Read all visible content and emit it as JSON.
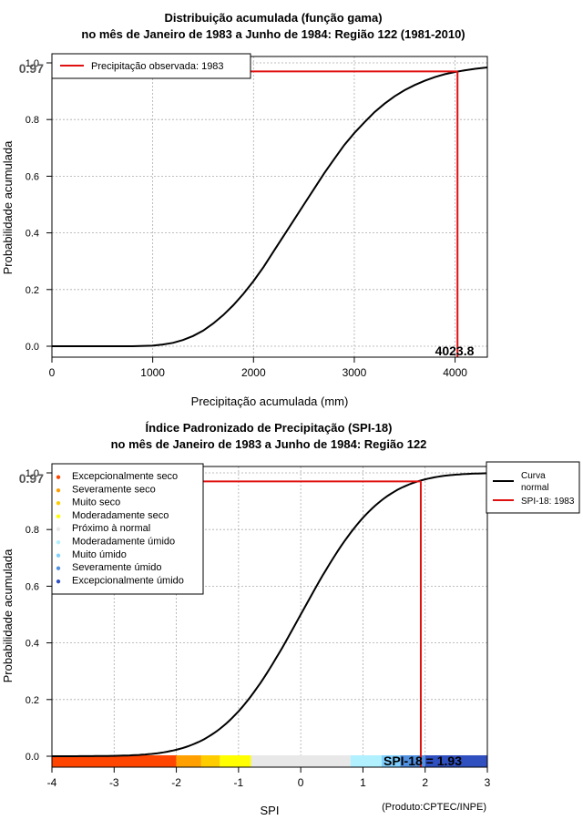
{
  "chart_data": [
    {
      "type": "line",
      "title": "Distribuição acumulada (função gama)",
      "subtitle": "no mês de Janeiro de 1983 a Junho de 1984: Região 122 (1981-2010)",
      "xlabel": "Precipitação acumulada (mm)",
      "ylabel": "Probabilidade acumulada",
      "xlim": [
        0,
        4320
      ],
      "ylim": [
        0,
        1.0
      ],
      "x_ticks": [
        "0",
        "1000",
        "2000",
        "3000",
        "4000"
      ],
      "x_tick_values": [
        0,
        1000,
        2000,
        3000,
        4000
      ],
      "y_ticks": [
        "0.0",
        "0.2",
        "0.4",
        "0.6",
        "0.8",
        "1.0"
      ],
      "y_tick_values": [
        0,
        0.2,
        0.4,
        0.6,
        0.8,
        1.0
      ],
      "grid": true,
      "curve_x": [
        0,
        400,
        800,
        1000,
        1100,
        1200,
        1300,
        1400,
        1500,
        1600,
        1700,
        1800,
        1900,
        2000,
        2100,
        2200,
        2300,
        2400,
        2500,
        2600,
        2700,
        2800,
        2900,
        3000,
        3100,
        3200,
        3300,
        3400,
        3500,
        3600,
        3700,
        3800,
        3900,
        4000,
        4100,
        4200,
        4320
      ],
      "curve_y": [
        0,
        0,
        0,
        0.002,
        0.006,
        0.012,
        0.022,
        0.036,
        0.055,
        0.08,
        0.11,
        0.145,
        0.185,
        0.23,
        0.28,
        0.335,
        0.39,
        0.445,
        0.5,
        0.555,
        0.61,
        0.66,
        0.71,
        0.752,
        0.79,
        0.826,
        0.856,
        0.882,
        0.904,
        0.922,
        0.937,
        0.95,
        0.96,
        0.968,
        0.974,
        0.979,
        0.984
      ],
      "highlight_x": 4023.8,
      "highlight_y": 0.97,
      "highlight_x_label": "4023.8",
      "highlight_y_label": "0.97",
      "legend_position": "top-left",
      "legend": [
        {
          "label": "Precipitação observada: 1983",
          "color": "#e01010"
        }
      ]
    },
    {
      "type": "line",
      "title": "Índice Padronizado de Precipitação (SPI-18)",
      "subtitle": "no mês de Janeiro de 1983 a Junho de 1984: Região 122",
      "xlabel": "SPI",
      "ylabel": "Probabilidade acumulada",
      "xlim": [
        -4,
        3
      ],
      "ylim": [
        0,
        1.0
      ],
      "x_ticks": [
        "-4",
        "-3",
        "-2",
        "-1",
        "0",
        "1",
        "2",
        "3"
      ],
      "x_tick_values": [
        -4,
        -3,
        -2,
        -1,
        0,
        1,
        2,
        3
      ],
      "y_ticks": [
        "0.0",
        "0.2",
        "0.4",
        "0.6",
        "0.8",
        "1.0"
      ],
      "y_tick_values": [
        0,
        0.2,
        0.4,
        0.6,
        0.8,
        1.0
      ],
      "grid": true,
      "highlight_x": 1.93,
      "highlight_y": 0.97,
      "highlight_x_label": "SPI-18 = 1.93",
      "highlight_y_label": "0.97",
      "legend_position": "top-left",
      "categories": [
        {
          "label": "Excepcionalmente seco",
          "color": "#ff4500",
          "range": [
            -4,
            -2
          ]
        },
        {
          "label": "Severamente seco",
          "color": "#ffa000",
          "range": [
            -2,
            -1.6
          ]
        },
        {
          "label": "Muito seco",
          "color": "#ffcc00",
          "range": [
            -1.6,
            -1.3
          ]
        },
        {
          "label": "Moderadamente seco",
          "color": "#ffff00",
          "range": [
            -1.3,
            -0.8
          ]
        },
        {
          "label": "Próximo à normal",
          "color": "#e8e8e8",
          "range": [
            -0.8,
            0.8
          ]
        },
        {
          "label": "Moderadamente úmido",
          "color": "#b0f0ff",
          "range": [
            0.8,
            1.3
          ]
        },
        {
          "label": "Muito úmido",
          "color": "#80d0ff",
          "range": [
            1.3,
            1.6
          ]
        },
        {
          "label": "Severamente úmido",
          "color": "#5090e0",
          "range": [
            1.6,
            2
          ]
        },
        {
          "label": "Excepcionalmente úmido",
          "color": "#3050c0",
          "range": [
            2,
            3
          ]
        }
      ],
      "legend_right": [
        {
          "label_line1": "Curva",
          "label_line2": "normal",
          "color": "#000000"
        },
        {
          "label_line1": "SPI-18: 1983",
          "label_line2": "",
          "color": "#e01010"
        }
      ],
      "footnote": "(Produto:CPTEC/INPE)"
    }
  ]
}
